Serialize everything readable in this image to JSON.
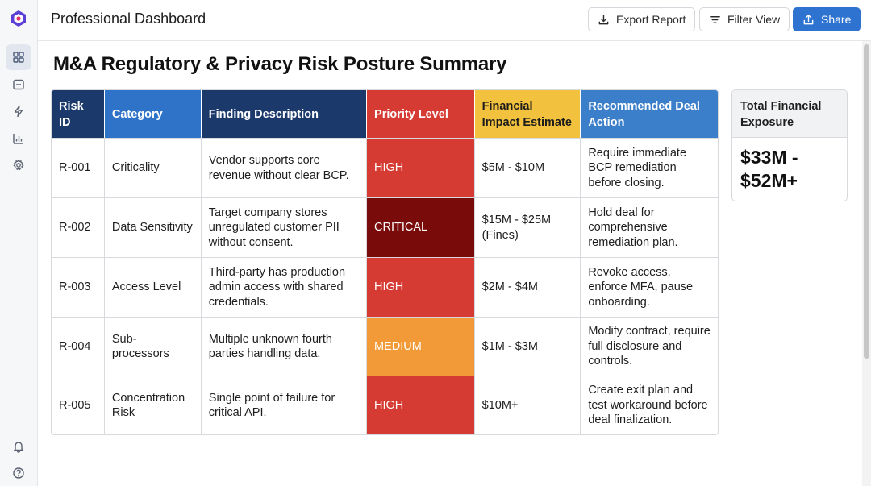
{
  "header": {
    "app_title": "Professional Dashboard",
    "buttons": {
      "export": {
        "label": "Export Report",
        "icon": "download-icon"
      },
      "filter": {
        "label": "Filter View",
        "icon": "filter-icon"
      },
      "share": {
        "label": "Share",
        "icon": "share-icon"
      }
    }
  },
  "sidebar": {
    "logo": "app-logo",
    "items": [
      {
        "icon": "grid-icon",
        "active": true
      },
      {
        "icon": "panel-icon",
        "active": false
      },
      {
        "icon": "lightning-icon",
        "active": false
      },
      {
        "icon": "bar-chart-icon",
        "active": false
      },
      {
        "icon": "gear-icon",
        "active": false
      }
    ],
    "bottom_items": [
      {
        "icon": "bell-icon"
      },
      {
        "icon": "help-icon"
      }
    ]
  },
  "main": {
    "title": "M&A Regulatory & Privacy Risk Posture Summary",
    "table": {
      "headers": [
        {
          "label": "Risk ID",
          "color": "#1b3a6b"
        },
        {
          "label": "Category",
          "color": "#2f73c9"
        },
        {
          "label": "Finding Description",
          "color": "#1b3a6b"
        },
        {
          "label": "Priority Level",
          "color": "#d63b33"
        },
        {
          "label": "Financial Impact Estimate",
          "color": "#f2c13d",
          "text_color": "#1c1c1c"
        },
        {
          "label": "Recommended Deal Action",
          "color": "#3b7ec9"
        }
      ],
      "rows": [
        {
          "id": "R-001",
          "category": "Criticality",
          "finding": "Vendor supports core revenue without clear BCP.",
          "priority": "HIGH",
          "priority_color": "#d63b33",
          "impact": "$5M - $10M",
          "action": "Require immediate BCP remediation before closing."
        },
        {
          "id": "R-002",
          "category": "Data Sensitivity",
          "finding": "Target company stores unregulated customer PII without consent.",
          "priority": "CRITICAL",
          "priority_color": "#7a0b0b",
          "impact": "$15M - $25M (Fines)",
          "action": "Hold deal for comprehensive remediation plan."
        },
        {
          "id": "R-003",
          "category": "Access Level",
          "finding": "Third-party has production admin access with shared credentials.",
          "priority": "HIGH",
          "priority_color": "#d63b33",
          "impact": "$2M - $4M",
          "action": "Revoke access, enforce MFA, pause onboarding."
        },
        {
          "id": "R-004",
          "category": "Sub-processors",
          "finding": "Multiple unknown fourth parties handling data.",
          "priority": "MEDIUM",
          "priority_color": "#f29a38",
          "priority_text_color": "#1c1c1c",
          "impact": "$1M - $3M",
          "action": "Modify contract, require full disclosure and controls."
        },
        {
          "id": "R-005",
          "category": "Concentration Risk",
          "finding": "Single point of failure for critical API.",
          "priority": "HIGH",
          "priority_color": "#d63b33",
          "impact": "$10M+",
          "action": "Create exit plan and test workaround before deal finalization."
        }
      ]
    },
    "exposure": {
      "label": "Total Financial Exposure",
      "value": "$33M - $52M+"
    }
  }
}
